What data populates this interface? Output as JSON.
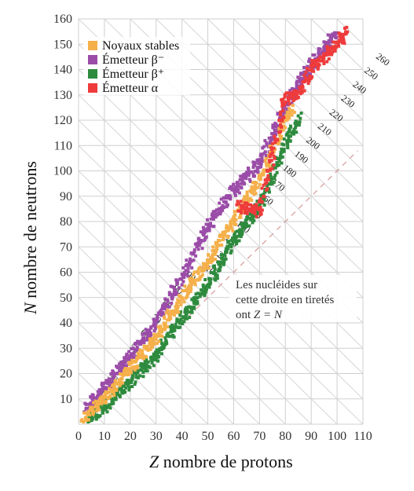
{
  "chart_data": {
    "type": "scatter",
    "title": "",
    "xlabel_var": "Z",
    "xlabel_text": " nombre de protons",
    "ylabel_var": "N",
    "ylabel_text": " nombre de neutrons",
    "xlim": [
      0,
      110
    ],
    "ylim": [
      0,
      160
    ],
    "xticks": [
      "0",
      "10",
      "20",
      "30",
      "40",
      "50",
      "60",
      "70",
      "80",
      "90",
      "100",
      "110"
    ],
    "yticks": [
      "10",
      "20",
      "30",
      "40",
      "50",
      "60",
      "70",
      "80",
      "90",
      "100",
      "110",
      "120",
      "130",
      "140",
      "150",
      "160"
    ],
    "grid": true,
    "legend_position": "top-left",
    "legend": [
      {
        "label": "Noyaux stables",
        "color": "#f5b04a"
      },
      {
        "label": "Émetteur β⁻",
        "color": "#9b4ca8"
      },
      {
        "label": "Émetteur β⁺",
        "color": "#2e8b3e"
      },
      {
        "label": "Émetteur α",
        "color": "#ee3b3b"
      }
    ],
    "mass_number_lines": [
      "10",
      "20",
      "30",
      "40",
      "50",
      "60",
      "70",
      "80",
      "90",
      "100",
      "110",
      "120",
      "130",
      "140",
      "150",
      "160",
      "170",
      "180",
      "190",
      "200",
      "210",
      "220",
      "230",
      "240",
      "250",
      "260"
    ],
    "annotation": {
      "lines": [
        "Les nucléides sur",
        "cette droite en tiretés",
        "ont "
      ],
      "formula": "Z = N"
    },
    "series": [
      {
        "name": "Noyaux stables",
        "color": "#f5b04a",
        "band": [
          [
            2,
            2
          ],
          [
            10,
            10
          ],
          [
            20,
            22
          ],
          [
            30,
            34
          ],
          [
            40,
            50
          ],
          [
            50,
            64
          ],
          [
            60,
            80
          ],
          [
            70,
            96
          ],
          [
            80,
            120
          ],
          [
            83,
            126
          ]
        ]
      },
      {
        "name": "Émetteur β⁻",
        "color": "#9b4ca8",
        "band": [
          [
            3,
            6
          ],
          [
            10,
            14
          ],
          [
            20,
            27
          ],
          [
            30,
            40
          ],
          [
            40,
            58
          ],
          [
            50,
            78
          ],
          [
            58,
            90
          ],
          [
            70,
            103
          ],
          [
            80,
            126
          ],
          [
            90,
            142
          ],
          [
            100,
            155
          ]
        ]
      },
      {
        "name": "Émetteur β⁺",
        "color": "#2e8b3e",
        "band": [
          [
            4,
            2
          ],
          [
            10,
            7
          ],
          [
            20,
            17
          ],
          [
            30,
            27
          ],
          [
            40,
            42
          ],
          [
            50,
            55
          ],
          [
            60,
            72
          ],
          [
            70,
            86
          ],
          [
            80,
            110
          ],
          [
            86,
            122
          ]
        ]
      },
      {
        "name": "Émetteur α",
        "color": "#ee3b3b",
        "band": [
          [
            62,
            86
          ],
          [
            70,
            84
          ],
          [
            80,
            128
          ],
          [
            85,
            130
          ],
          [
            90,
            140
          ],
          [
            95,
            145
          ],
          [
            100,
            150
          ],
          [
            104,
            155
          ]
        ]
      }
    ]
  }
}
